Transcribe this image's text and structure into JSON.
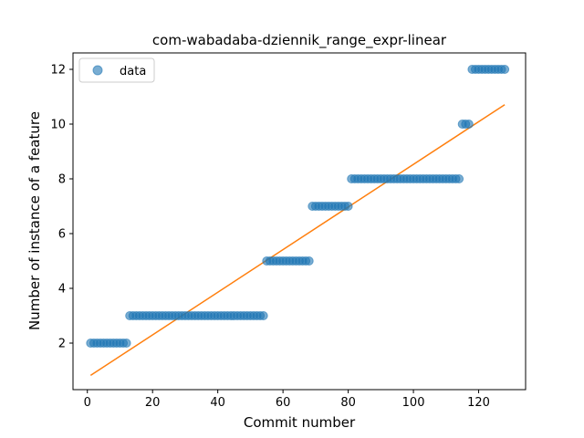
{
  "chart_data": {
    "type": "scatter",
    "title": "com-wabadaba-dziennik_range_expr-linear",
    "xlabel": "Commit number",
    "ylabel": "Number of instance of a feature",
    "xlim": [
      -4.4,
      134.4
    ],
    "ylim": [
      0.3,
      12.6
    ],
    "xticks": [
      0,
      20,
      40,
      60,
      80,
      100,
      120
    ],
    "yticks": [
      2,
      4,
      6,
      8,
      10,
      12
    ],
    "grid": false,
    "legend": {
      "position": "top-left",
      "entries": [
        "data"
      ]
    },
    "series": [
      {
        "name": "data",
        "kind": "points",
        "color": "#1f77b4",
        "segments": [
          {
            "x_start": 1,
            "x_end": 12,
            "y": 2
          },
          {
            "x_start": 13,
            "x_end": 54,
            "y": 3
          },
          {
            "x_start": 55,
            "x_end": 68,
            "y": 5
          },
          {
            "x_start": 69,
            "x_end": 80,
            "y": 7
          },
          {
            "x_start": 81,
            "x_end": 114,
            "y": 8
          },
          {
            "x_start": 115,
            "x_end": 117,
            "y": 10
          },
          {
            "x_start": 118,
            "x_end": 128,
            "y": 12
          }
        ]
      },
      {
        "kind": "line",
        "color": "#ff7f0e",
        "x": [
          1,
          128
        ],
        "y": [
          0.82,
          10.71
        ]
      }
    ]
  }
}
